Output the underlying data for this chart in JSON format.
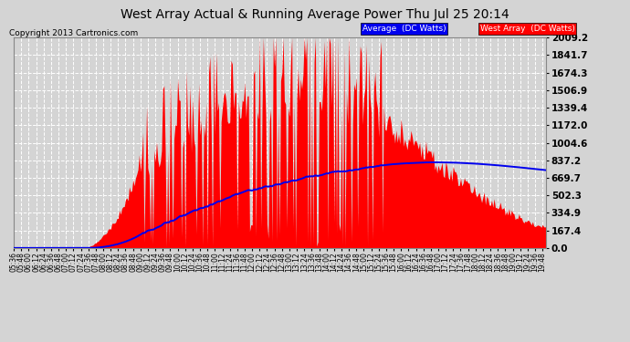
{
  "title": "West Array Actual & Running Average Power Thu Jul 25 20:14",
  "copyright": "Copyright 2013 Cartronics.com",
  "legend_avg": "Average  (DC Watts)",
  "legend_west": "West Array  (DC Watts)",
  "ymin": 0.0,
  "ymax": 2009.2,
  "yticks": [
    0.0,
    167.4,
    334.9,
    502.3,
    669.7,
    837.2,
    1004.6,
    1172.0,
    1339.4,
    1506.9,
    1674.3,
    1841.7,
    2009.2
  ],
  "bg_color": "#d4d4d4",
  "grid_color": "#ffffff",
  "bar_color": "#ff0000",
  "avg_color": "#0000ee",
  "title_color": "#000000",
  "title_fontsize": 10,
  "copyright_fontsize": 6.5,
  "ytick_fontsize": 7.5,
  "xtick_fontsize": 5.5
}
